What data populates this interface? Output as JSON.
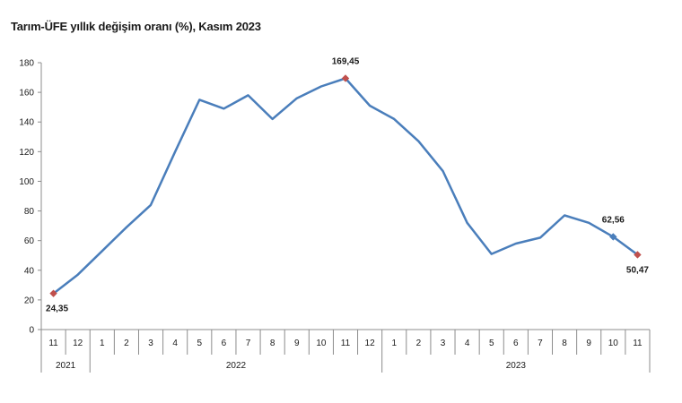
{
  "chart_data": {
    "type": "line",
    "title": "Tarım-ÜFE yıllık değişim oranı (%), Kasım 2023",
    "xlabel": "",
    "ylabel": "",
    "ylim": [
      0,
      180
    ],
    "yticks": [
      0,
      20,
      40,
      60,
      80,
      100,
      120,
      140,
      160,
      180
    ],
    "grid": false,
    "legend": "none",
    "line_color": "#4a7ebb",
    "marker_color": "#c0504d",
    "categories": [
      "11",
      "12",
      "1",
      "2",
      "3",
      "4",
      "5",
      "6",
      "7",
      "8",
      "9",
      "10",
      "11",
      "12",
      "1",
      "2",
      "3",
      "4",
      "5",
      "6",
      "7",
      "8",
      "9",
      "10",
      "11"
    ],
    "year_groups": [
      {
        "label": "2021",
        "count": 2
      },
      {
        "label": "2022",
        "count": 12
      },
      {
        "label": "2023",
        "count": 11
      }
    ],
    "series": [
      {
        "values": [
          24.35,
          37,
          53,
          69,
          84,
          120,
          155,
          149,
          158,
          142,
          156,
          164,
          169.45,
          151,
          142,
          127,
          107,
          72,
          51,
          58,
          62,
          77,
          72,
          62.56,
          50.47
        ]
      }
    ],
    "data_labels": [
      {
        "index": 0,
        "text": "24,35",
        "marker": "red"
      },
      {
        "index": 12,
        "text": "169,45",
        "marker": "red"
      },
      {
        "index": 23,
        "text": "62,56",
        "marker": "blue"
      },
      {
        "index": 24,
        "text": "50,47",
        "marker": "red"
      }
    ]
  }
}
